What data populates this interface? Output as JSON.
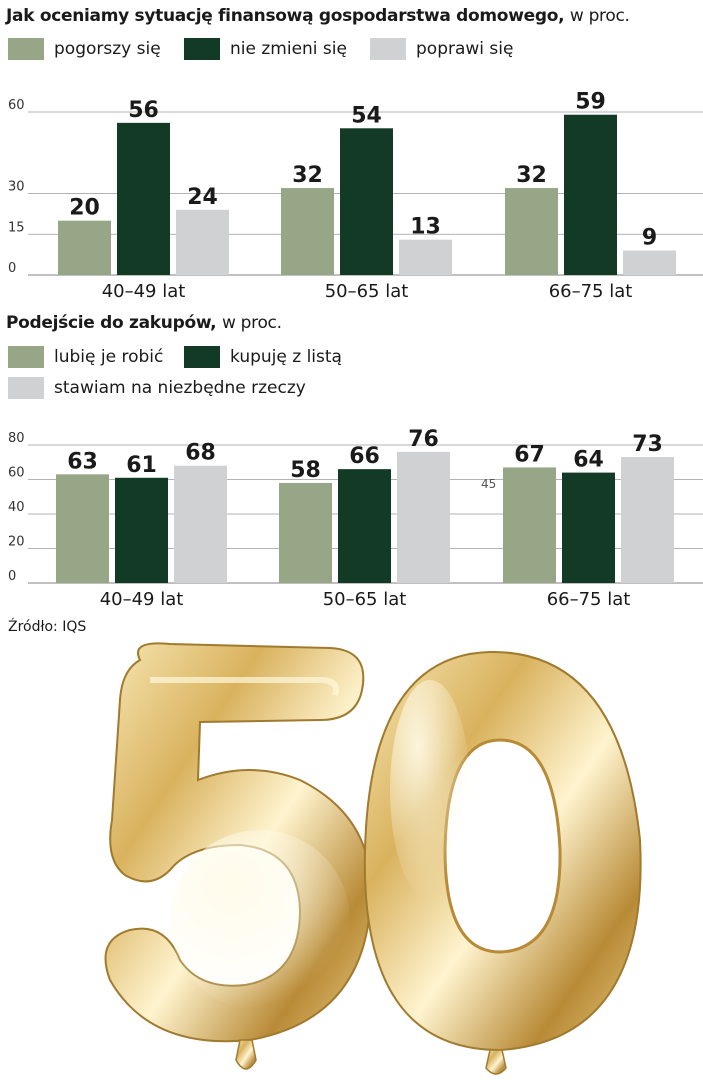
{
  "source": "Źródło: IQS",
  "colors": {
    "light": "#97a686",
    "dark": "#123a27",
    "grey": "#d0d1d3"
  },
  "chart_data": [
    {
      "type": "bar",
      "title": "Jak oceniamy sytuację finansową gospodarstwa domowego,",
      "unit": "w proc.",
      "categories": [
        "40–49 lat",
        "50–65 lat",
        "66–75 lat"
      ],
      "yticks": [
        "0",
        "15",
        "30",
        "60"
      ],
      "ylim": [
        0,
        60
      ],
      "series": [
        {
          "name": "pogorszy się",
          "color": "#97a686",
          "values": [
            20,
            32,
            32
          ],
          "labels": [
            "20",
            "32",
            "32"
          ]
        },
        {
          "name": "nie zmieni się",
          "color": "#123a27",
          "values": [
            56,
            54,
            59
          ],
          "labels": [
            "56",
            "54",
            "59"
          ]
        },
        {
          "name": "poprawi się",
          "color": "#d0d1d3",
          "values": [
            24,
            13,
            9
          ],
          "labels": [
            "24",
            "13",
            "9"
          ]
        }
      ]
    },
    {
      "type": "bar",
      "title": "Podejście do zakupów,",
      "unit": "w proc.",
      "categories": [
        "40–49 lat",
        "50–65 lat",
        "66–75 lat"
      ],
      "yticks": [
        "0",
        "20",
        "40",
        "60",
        "80"
      ],
      "ylim": [
        0,
        80
      ],
      "annotation": "45",
      "series": [
        {
          "name": "lubię je robić",
          "color": "#97a686",
          "values": [
            63,
            58,
            67
          ],
          "labels": [
            "63",
            "58",
            "67"
          ]
        },
        {
          "name": "kupuję z listą",
          "color": "#123a27",
          "values": [
            61,
            66,
            64
          ],
          "labels": [
            "61",
            "66",
            "64"
          ]
        },
        {
          "name": "stawiam na niezbędne rzeczy",
          "color": "#d0d1d3",
          "values": [
            68,
            76,
            73
          ],
          "labels": [
            "68",
            "76",
            "73"
          ]
        }
      ]
    }
  ]
}
